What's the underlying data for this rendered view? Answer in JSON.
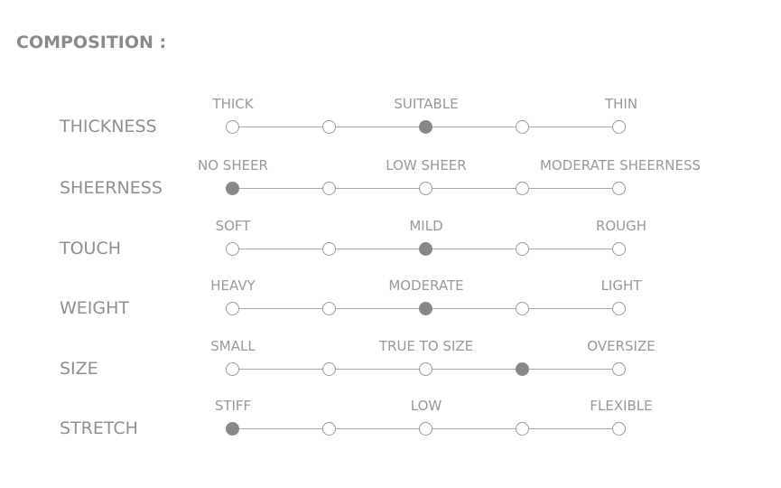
{
  "title": "COMPOSITION :",
  "rows": [
    {
      "label": "THICKNESS",
      "left": "THICK",
      "mid": "SUITABLE",
      "right": "THIN",
      "selected": 3
    },
    {
      "label": "SHEERNESS",
      "left": "NO SHEER",
      "mid": "LOW SHEER",
      "right": "MODERATE SHEERNESS",
      "selected": 1
    },
    {
      "label": "TOUCH",
      "left": "SOFT",
      "mid": "MILD",
      "right": "ROUGH",
      "selected": 3
    },
    {
      "label": "WEIGHT",
      "left": "HEAVY",
      "mid": "MODERATE",
      "right": "LIGHT",
      "selected": 3
    },
    {
      "label": "SIZE",
      "left": "SMALL",
      "mid": "TRUE TO SIZE",
      "right": "OVERSIZE",
      "selected": 4
    },
    {
      "label": "STRETCH",
      "left": "STIFF",
      "mid": "LOW",
      "right": "FLEXIBLE",
      "selected": 1
    }
  ],
  "colors": {
    "selected": "#888888",
    "outline": "#9a9a9a",
    "text": "#999999"
  }
}
